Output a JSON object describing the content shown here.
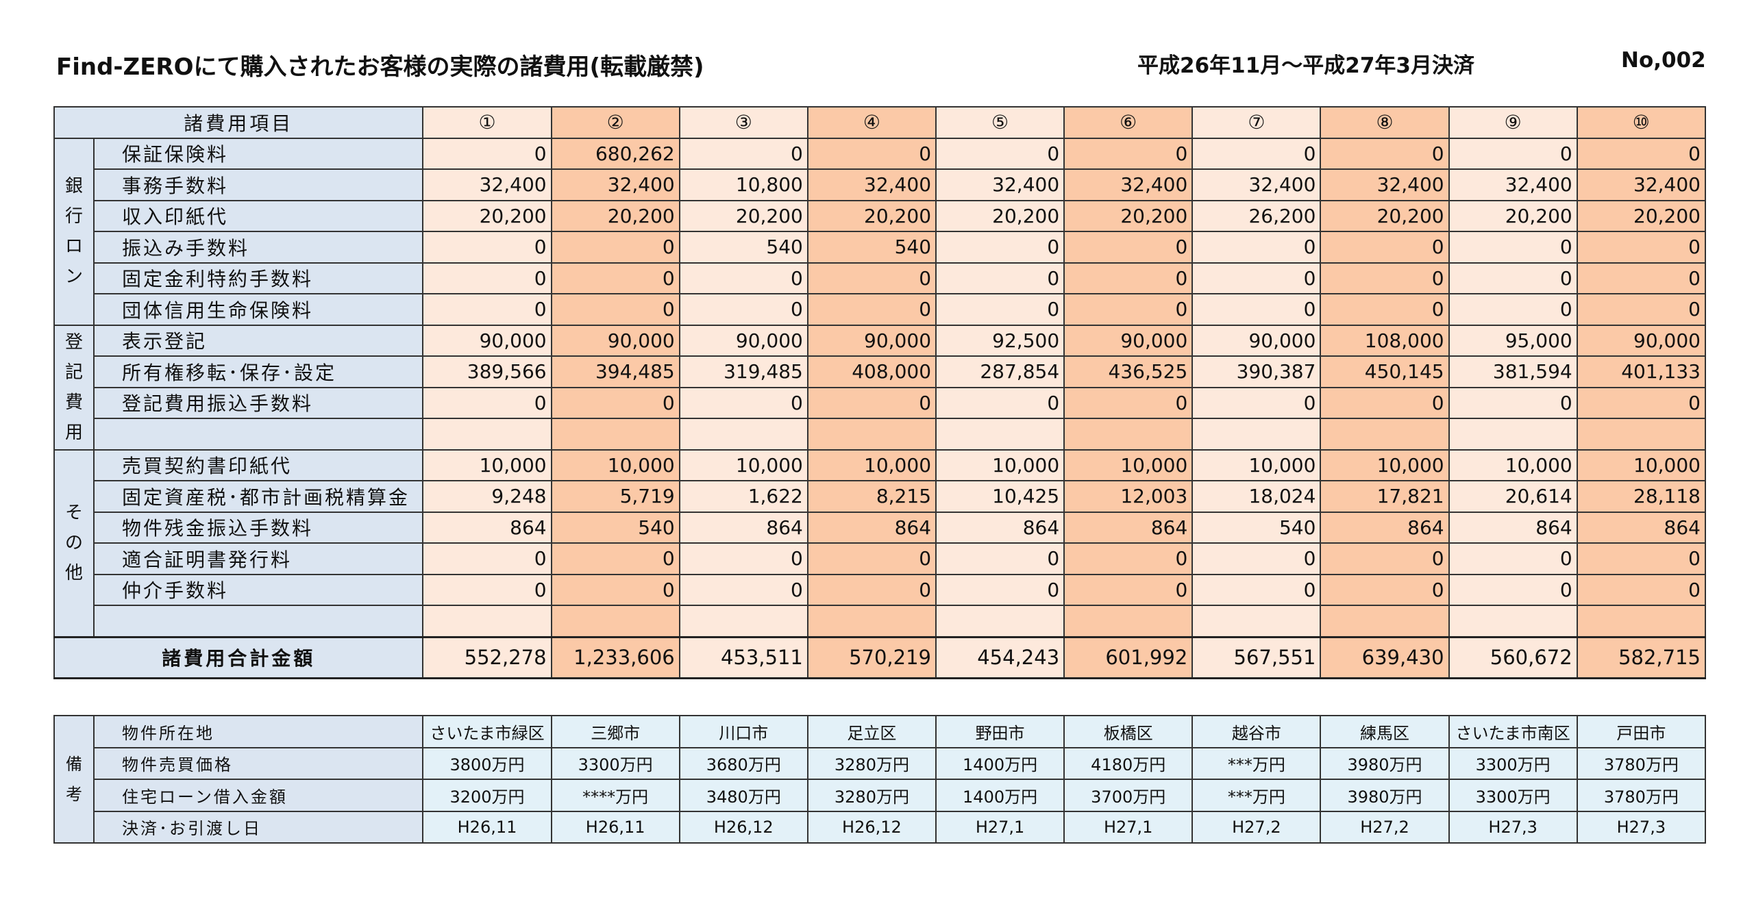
{
  "header": {
    "title": "Find-ZEROにて購入されたお客様の実際の諸費用(転載厳禁)",
    "period": "平成26年11月～平成27年3月決済",
    "number": "No,002"
  },
  "table": {
    "corner_label": "諸費用項目",
    "columns": [
      "①",
      "②",
      "③",
      "④",
      "⑤",
      "⑥",
      "⑦",
      "⑧",
      "⑨",
      "⑩"
    ],
    "groups": [
      {
        "label": "銀行ロン",
        "rows": [
          {
            "label": "保証保険料",
            "values": [
              "0",
              "680,262",
              "0",
              "0",
              "0",
              "0",
              "0",
              "0",
              "0",
              "0"
            ]
          },
          {
            "label": "事務手数料",
            "values": [
              "32,400",
              "32,400",
              "10,800",
              "32,400",
              "32,400",
              "32,400",
              "32,400",
              "32,400",
              "32,400",
              "32,400"
            ]
          },
          {
            "label": "収入印紙代",
            "values": [
              "20,200",
              "20,200",
              "20,200",
              "20,200",
              "20,200",
              "20,200",
              "26,200",
              "20,200",
              "20,200",
              "20,200"
            ]
          },
          {
            "label": "振込み手数料",
            "values": [
              "0",
              "0",
              "540",
              "540",
              "0",
              "0",
              "0",
              "0",
              "0",
              "0"
            ]
          },
          {
            "label": "固定金利特約手数料",
            "values": [
              "0",
              "0",
              "0",
              "0",
              "0",
              "0",
              "0",
              "0",
              "0",
              "0"
            ]
          },
          {
            "label": "団体信用生命保険料",
            "values": [
              "0",
              "0",
              "0",
              "0",
              "0",
              "0",
              "0",
              "0",
              "0",
              "0"
            ]
          }
        ]
      },
      {
        "label": "登記費用",
        "rows": [
          {
            "label": "表示登記",
            "values": [
              "90,000",
              "90,000",
              "90,000",
              "90,000",
              "92,500",
              "90,000",
              "90,000",
              "108,000",
              "95,000",
              "90,000"
            ]
          },
          {
            "label": "所有権移転･保存･設定",
            "values": [
              "389,566",
              "394,485",
              "319,485",
              "408,000",
              "287,854",
              "436,525",
              "390,387",
              "450,145",
              "381,594",
              "401,133"
            ]
          },
          {
            "label": "登記費用振込手数料",
            "values": [
              "0",
              "0",
              "0",
              "0",
              "0",
              "0",
              "0",
              "0",
              "0",
              "0"
            ]
          },
          {
            "label": "",
            "values": [
              "",
              "",
              "",
              "",
              "",
              "",
              "",
              "",
              "",
              ""
            ]
          }
        ]
      },
      {
        "label": "その他",
        "rows": [
          {
            "label": "売買契約書印紙代",
            "values": [
              "10,000",
              "10,000",
              "10,000",
              "10,000",
              "10,000",
              "10,000",
              "10,000",
              "10,000",
              "10,000",
              "10,000"
            ]
          },
          {
            "label": "固定資産税･都市計画税精算金",
            "values": [
              "9,248",
              "5,719",
              "1,622",
              "8,215",
              "10,425",
              "12,003",
              "18,024",
              "17,821",
              "20,614",
              "28,118"
            ]
          },
          {
            "label": "物件残金振込手数料",
            "values": [
              "864",
              "540",
              "864",
              "864",
              "864",
              "864",
              "540",
              "864",
              "864",
              "864"
            ]
          },
          {
            "label": "適合証明書発行料",
            "values": [
              "0",
              "0",
              "0",
              "0",
              "0",
              "0",
              "0",
              "0",
              "0",
              "0"
            ]
          },
          {
            "label": "仲介手数料",
            "values": [
              "0",
              "0",
              "0",
              "0",
              "0",
              "0",
              "0",
              "0",
              "0",
              "0"
            ]
          },
          {
            "label": "",
            "values": [
              "",
              "",
              "",
              "",
              "",
              "",
              "",
              "",
              "",
              ""
            ]
          }
        ]
      }
    ],
    "total": {
      "label": "諸費用合計金額",
      "values": [
        "552,278",
        "1,233,606",
        "453,511",
        "570,219",
        "454,243",
        "601,992",
        "567,551",
        "639,430",
        "560,672",
        "582,715"
      ]
    }
  },
  "remarks": {
    "label": "備考",
    "rows": [
      {
        "label": "物件所在地",
        "values": [
          "さいたま市緑区",
          "三郷市",
          "川口市",
          "足立区",
          "野田市",
          "板橋区",
          "越谷市",
          "練馬区",
          "さいたま市南区",
          "戸田市"
        ]
      },
      {
        "label": "物件売買価格",
        "values": [
          "3800万円",
          "3300万円",
          "3680万円",
          "3280万円",
          "1400万円",
          "4180万円",
          "***万円",
          "3980万円",
          "3300万円",
          "3780万円"
        ]
      },
      {
        "label": "住宅ローン借入金額",
        "values": [
          "3200万円",
          "****万円",
          "3480万円",
          "3280万円",
          "1400万円",
          "3700万円",
          "***万円",
          "3980万円",
          "3300万円",
          "3780万円"
        ]
      },
      {
        "label": "決済･お引渡し日",
        "values": [
          "H26,11",
          "H26,11",
          "H26,12",
          "H26,12",
          "H27,1",
          "H27,1",
          "H27,2",
          "H27,2",
          "H27,3",
          "H27,3"
        ]
      }
    ]
  },
  "colors": {
    "header_blue": "#dbe5f1",
    "column_light": "#fde9dc",
    "column_dark": "#fbc9a7",
    "remarks_blue": "#e3f1f8"
  }
}
